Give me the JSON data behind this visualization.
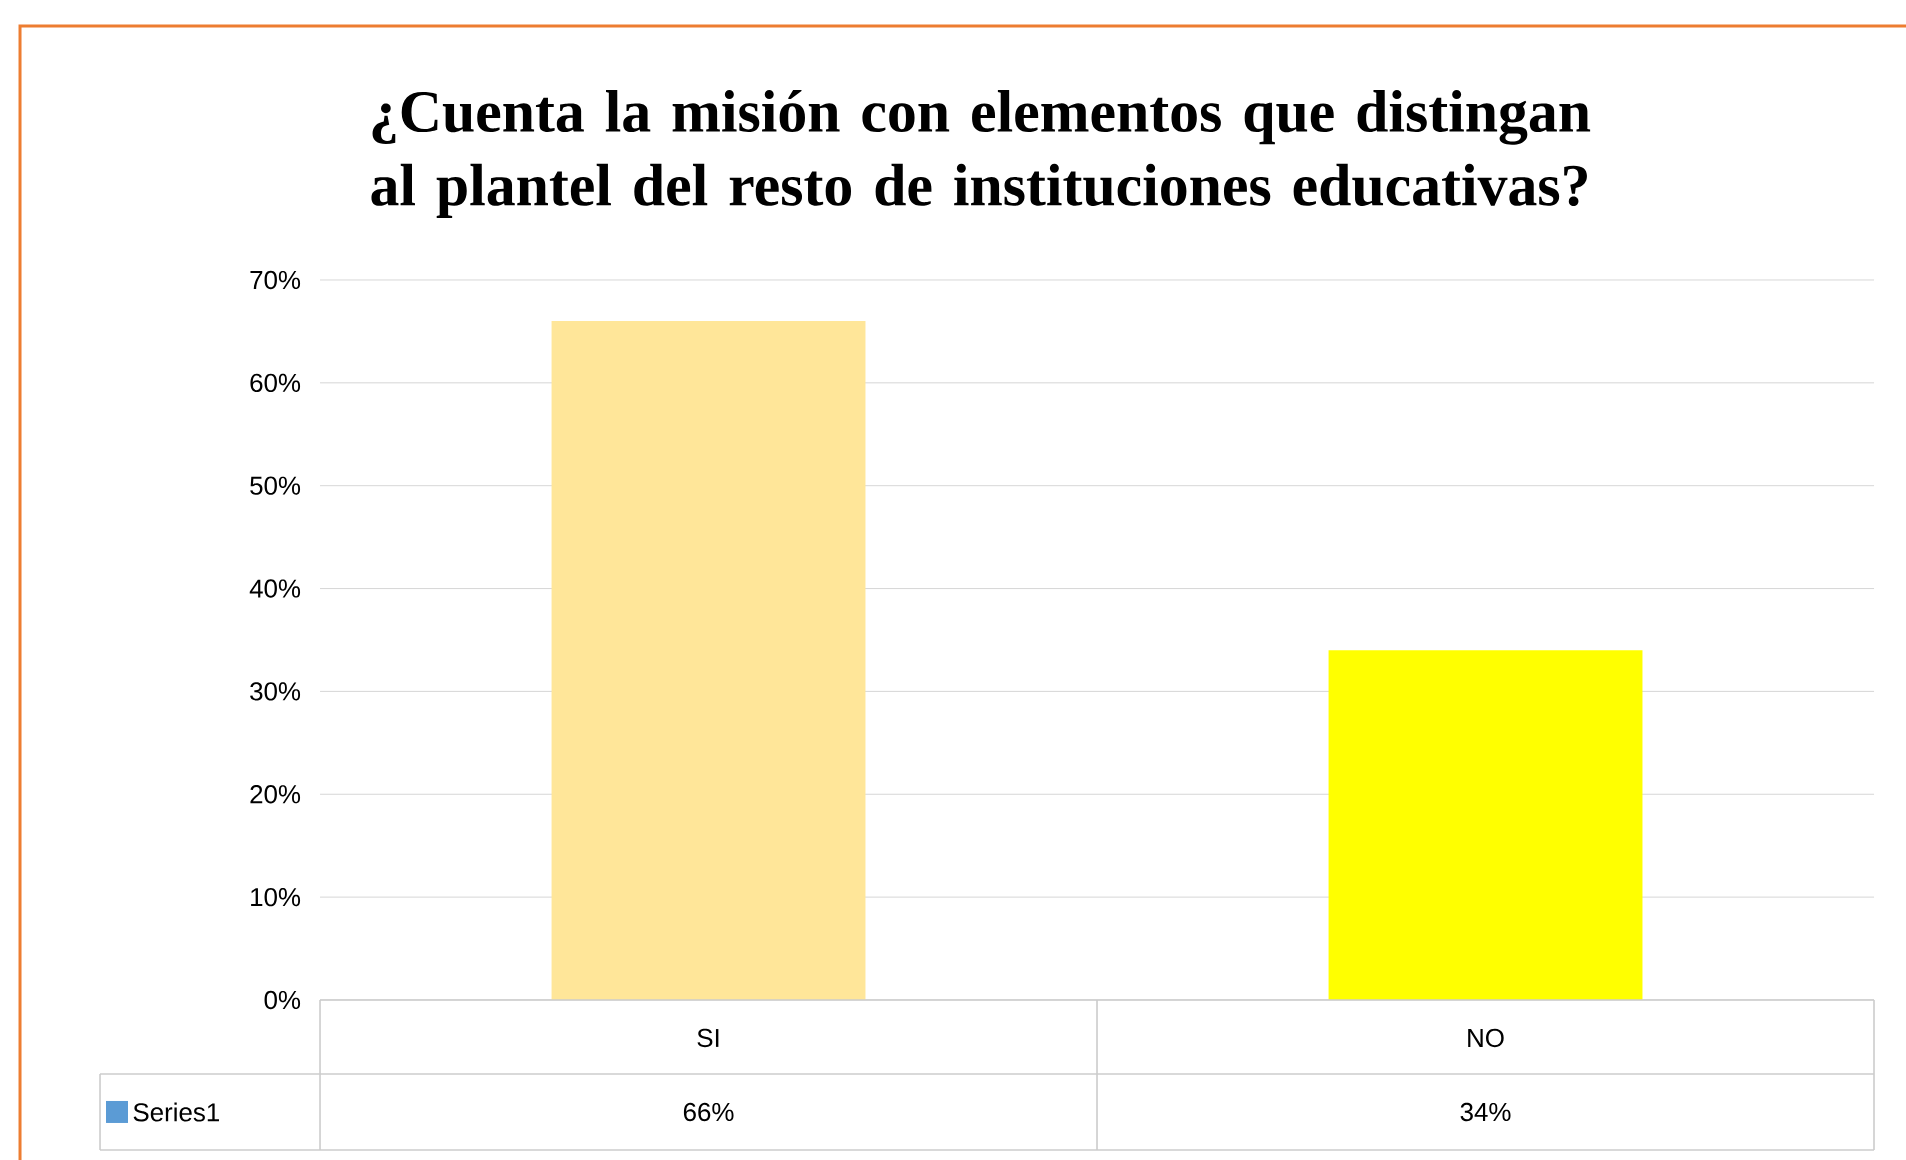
{
  "chart_data": {
    "type": "bar",
    "title": "¿Cuenta la misión con elementos que distingan al plantel del resto de instituciones educativas?",
    "categories": [
      "SI",
      "NO"
    ],
    "series": [
      {
        "name": "Series1",
        "color": "#5b9bd5",
        "colors": [
          "#ffe699",
          "#ffff00"
        ],
        "values": [
          66,
          34
        ],
        "value_labels": [
          "66%",
          "34%"
        ]
      }
    ],
    "ylim": [
      0,
      70
    ],
    "yticks": [
      {
        "value": 0,
        "label": "0%"
      },
      {
        "value": 10,
        "label": "10%"
      },
      {
        "value": 20,
        "label": "20%"
      },
      {
        "value": 30,
        "label": "30%"
      },
      {
        "value": 40,
        "label": "40%"
      },
      {
        "value": 50,
        "label": "50%"
      },
      {
        "value": 60,
        "label": "60%"
      },
      {
        "value": 70,
        "label": "70%"
      }
    ],
    "grid": "y",
    "legend": "bottom"
  }
}
